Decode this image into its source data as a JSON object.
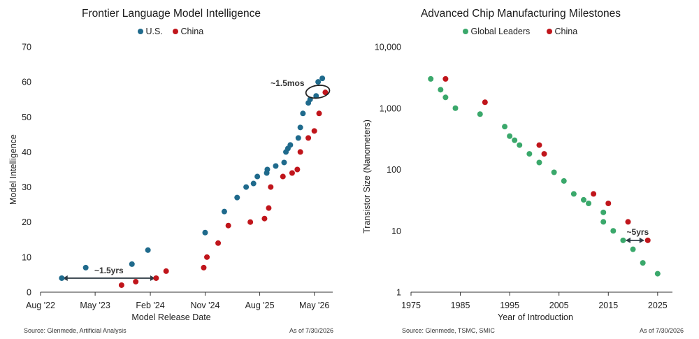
{
  "colors": {
    "us": "#1f6a8c",
    "china": "#c0151b",
    "global": "#3aa86b",
    "axis": "#333333",
    "annot": "#2f3b45"
  },
  "footer": {
    "left_source": "Source: Glenmede, Artificial Analysis",
    "left_date": "As of 7/30/2026",
    "right_source": "Source: Glenmede, TSMC, SMIC",
    "right_date": "As of 7/30/2026"
  },
  "chart_data": [
    {
      "type": "scatter",
      "title": "Frontier Language Model Intelligence",
      "xlabel": "Model Release Date",
      "ylabel": "Model Intelligence",
      "xlim": [
        "2022-08-01",
        "2026-08-01"
      ],
      "ylim": [
        0,
        70
      ],
      "x_ticks": [
        "Aug '22",
        "May '23",
        "Feb '24",
        "Nov '24",
        "Aug '25",
        "May '26"
      ],
      "x_tick_dates": [
        "2022-08-01",
        "2023-05-01",
        "2024-02-01",
        "2024-11-01",
        "2025-08-01",
        "2026-05-01"
      ],
      "y_ticks": [
        0,
        10,
        20,
        30,
        40,
        50,
        60,
        70
      ],
      "legend": "top-center",
      "grid": false,
      "series": [
        {
          "name": "U.S.",
          "color_key": "us",
          "points": [
            {
              "x": "2022-11-15",
              "y": 4
            },
            {
              "x": "2023-03-15",
              "y": 7
            },
            {
              "x": "2023-11-01",
              "y": 8
            },
            {
              "x": "2024-01-20",
              "y": 12
            },
            {
              "x": "2024-11-01",
              "y": 17
            },
            {
              "x": "2025-02-05",
              "y": 23
            },
            {
              "x": "2025-04-10",
              "y": 27
            },
            {
              "x": "2025-05-25",
              "y": 30
            },
            {
              "x": "2025-07-01",
              "y": 31
            },
            {
              "x": "2025-07-20",
              "y": 33
            },
            {
              "x": "2025-09-05",
              "y": 34
            },
            {
              "x": "2025-09-08",
              "y": 35
            },
            {
              "x": "2025-10-20",
              "y": 36
            },
            {
              "x": "2025-12-01",
              "y": 37
            },
            {
              "x": "2025-12-10",
              "y": 40
            },
            {
              "x": "2025-12-20",
              "y": 41
            },
            {
              "x": "2026-01-01",
              "y": 42
            },
            {
              "x": "2026-02-10",
              "y": 44
            },
            {
              "x": "2026-02-20",
              "y": 47
            },
            {
              "x": "2026-03-05",
              "y": 51
            },
            {
              "x": "2026-04-01",
              "y": 54
            },
            {
              "x": "2026-04-10",
              "y": 55
            },
            {
              "x": "2026-05-10",
              "y": 56
            },
            {
              "x": "2026-05-20",
              "y": 60
            },
            {
              "x": "2026-06-10",
              "y": 61
            }
          ]
        },
        {
          "name": "China",
          "color_key": "china",
          "points": [
            {
              "x": "2023-09-10",
              "y": 2
            },
            {
              "x": "2023-11-20",
              "y": 3
            },
            {
              "x": "2024-03-01",
              "y": 4
            },
            {
              "x": "2024-04-20",
              "y": 6
            },
            {
              "x": "2024-10-25",
              "y": 7
            },
            {
              "x": "2024-11-10",
              "y": 10
            },
            {
              "x": "2025-01-05",
              "y": 14
            },
            {
              "x": "2025-02-25",
              "y": 19
            },
            {
              "x": "2025-06-15",
              "y": 20
            },
            {
              "x": "2025-08-25",
              "y": 21
            },
            {
              "x": "2025-09-15",
              "y": 24
            },
            {
              "x": "2025-09-25",
              "y": 30
            },
            {
              "x": "2025-11-25",
              "y": 33
            },
            {
              "x": "2026-01-10",
              "y": 34
            },
            {
              "x": "2026-02-05",
              "y": 35
            },
            {
              "x": "2026-02-20",
              "y": 40
            },
            {
              "x": "2026-04-01",
              "y": 44
            },
            {
              "x": "2026-05-01",
              "y": 46
            },
            {
              "x": "2026-05-25",
              "y": 51
            },
            {
              "x": "2026-06-25",
              "y": 57
            }
          ]
        }
      ],
      "annotations": [
        {
          "text": "~1.5yrs",
          "kind": "double-arrow",
          "from": "2022-11-20",
          "to": "2024-02-25",
          "y": 4
        },
        {
          "text": "~1.5mos",
          "kind": "ellipse",
          "center_x": "2026-06-01",
          "center_y": 57
        }
      ]
    },
    {
      "type": "scatter",
      "title": "Advanced Chip Manufacturing Milestones",
      "xlabel": "Year of Introduction",
      "ylabel": "Transistor Size (Nanometers)",
      "xlim": [
        1975,
        2028
      ],
      "ylim": [
        1,
        10000
      ],
      "y_scale": "log",
      "x_ticks": [
        1975,
        1985,
        1995,
        2005,
        2015,
        2025
      ],
      "y_ticks": [
        1,
        10,
        100,
        1000,
        10000
      ],
      "y_tick_labels": [
        "1",
        "10",
        "100",
        "1,000",
        "10,000"
      ],
      "legend": "top-center",
      "grid": false,
      "series": [
        {
          "name": "Global Leaders",
          "color_key": "global",
          "points": [
            {
              "x": 1979,
              "y": 3000
            },
            {
              "x": 1981,
              "y": 2000
            },
            {
              "x": 1982,
              "y": 1500
            },
            {
              "x": 1984,
              "y": 1000
            },
            {
              "x": 1989,
              "y": 800
            },
            {
              "x": 1994,
              "y": 500
            },
            {
              "x": 1995,
              "y": 350
            },
            {
              "x": 1996,
              "y": 300
            },
            {
              "x": 1997,
              "y": 250
            },
            {
              "x": 1999,
              "y": 180
            },
            {
              "x": 2001,
              "y": 130
            },
            {
              "x": 2004,
              "y": 90
            },
            {
              "x": 2006,
              "y": 65
            },
            {
              "x": 2008,
              "y": 40
            },
            {
              "x": 2010,
              "y": 32
            },
            {
              "x": 2011,
              "y": 28
            },
            {
              "x": 2014,
              "y": 20
            },
            {
              "x": 2014,
              "y": 14
            },
            {
              "x": 2016,
              "y": 10
            },
            {
              "x": 2018,
              "y": 7
            },
            {
              "x": 2020,
              "y": 5
            },
            {
              "x": 2022,
              "y": 3
            },
            {
              "x": 2025,
              "y": 2
            }
          ]
        },
        {
          "name": "China",
          "color_key": "china",
          "points": [
            {
              "x": 1982,
              "y": 3000
            },
            {
              "x": 1990,
              "y": 1250
            },
            {
              "x": 2001,
              "y": 250
            },
            {
              "x": 2002,
              "y": 180
            },
            {
              "x": 2012,
              "y": 40
            },
            {
              "x": 2015,
              "y": 28
            },
            {
              "x": 2019,
              "y": 14
            },
            {
              "x": 2023,
              "y": 7
            }
          ]
        }
      ],
      "annotations": [
        {
          "text": "~5yrs",
          "kind": "double-arrow",
          "from": 2018.5,
          "to": 2022.3,
          "y": 7
        }
      ]
    }
  ]
}
